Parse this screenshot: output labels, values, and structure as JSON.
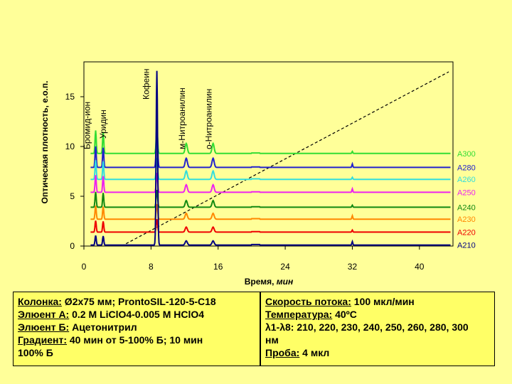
{
  "chart_data": {
    "type": "line",
    "ylabel": "Оптическая плотность, е.о.п.",
    "xlabel_main": "Время, ",
    "xlabel_unit": "мин",
    "xlim": [
      0,
      44
    ],
    "ylim": [
      0,
      18.5
    ],
    "x_ticks": [
      0,
      8,
      16,
      24,
      32,
      40
    ],
    "y_ticks": [
      0,
      5,
      10,
      15
    ],
    "peaks": [
      {
        "label": "Бромид-ион",
        "x": 1.4
      },
      {
        "label": "Уридин",
        "x": 2.3
      },
      {
        "label": "Кофеин",
        "x": 8.7
      },
      {
        "label": "м-Нитроанилин",
        "x": 12.2
      },
      {
        "label": "о-Нитроанилин",
        "x": 15.4
      }
    ],
    "gradient_line": {
      "x": [
        4.5,
        43.5
      ],
      "y": [
        0,
        17.5
      ]
    },
    "series": [
      {
        "name": "A300",
        "color": "#33DD33",
        "baseline": 9.3
      },
      {
        "name": "A280",
        "color": "#2222CC",
        "baseline": 7.9
      },
      {
        "name": "A260",
        "color": "#33DDDD",
        "baseline": 6.7
      },
      {
        "name": "A250",
        "color": "#EE22EE",
        "baseline": 5.4
      },
      {
        "name": "A240",
        "color": "#118811",
        "baseline": 3.9
      },
      {
        "name": "A230",
        "color": "#FF8800",
        "baseline": 2.7
      },
      {
        "name": "A220",
        "color": "#EE0000",
        "baseline": 1.4
      },
      {
        "name": "A210",
        "color": "#000080",
        "baseline": 0.1
      }
    ]
  },
  "info_left": {
    "l1_label": "Колонка:",
    "l1_value": " Ø2x75 мм; ProntoSIL-120-5-C18",
    "l2_label": "Элюент А:",
    "l2_value": " 0.2 M LiClO4-0.005 M HClO4",
    "l3_label": "Элюент Б:",
    "l3_value": " Ацетонитрил",
    "l4_label": "Градиент:",
    "l4_value": " 40 мин от 5-100% Б; 10 мин",
    "l5": "100% Б"
  },
  "info_right": {
    "l1_label": "Скорость потока:",
    "l1_value": " 100 мкл/мин",
    "l2_label": "Температура:",
    "l2_value": " 40ºС",
    "l3_value": "λ1-λ8: 210, 220, 230, 240, 250, 260, 280, 300",
    "l4": "нм",
    "l5_label": "Проба:",
    "l5_value": " 4 мкл"
  }
}
